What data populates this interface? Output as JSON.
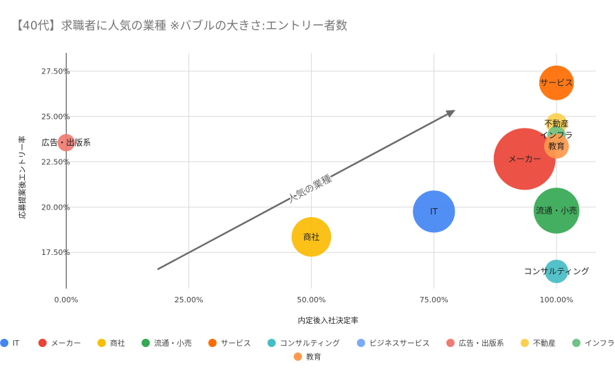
{
  "chart_data": {
    "type": "scatter",
    "title": "【40代】求職者に人気の業種 ※バブルの大きさ:エントリー者数",
    "xlabel": "内定後入社決定率",
    "ylabel": "応募提案後エントリー率",
    "xlim": [
      -0.02,
      1.08
    ],
    "ylim": [
      0.155,
      0.285
    ],
    "x_ticks": [
      "0.00%",
      "25.00%",
      "50.00%",
      "75.00%",
      "100.00%"
    ],
    "x_tick_values": [
      0,
      0.25,
      0.5,
      0.75,
      1.0
    ],
    "y_ticks": [
      "17.50%",
      "20.00%",
      "22.50%",
      "25.00%",
      "27.50%"
    ],
    "y_tick_values": [
      0.175,
      0.2,
      0.225,
      0.25,
      0.275
    ],
    "annotation": "人気の業種",
    "series": [
      {
        "name": "IT",
        "label": "IT",
        "x": 0.75,
        "y": 0.1975,
        "size": 34,
        "color": "#4285f4"
      },
      {
        "name": "メーカー",
        "label": "メーカー",
        "x": 0.935,
        "y": 0.2265,
        "size": 50,
        "color": "#ea4335"
      },
      {
        "name": "商社",
        "label": "商社",
        "x": 0.5,
        "y": 0.1835,
        "size": 32,
        "color": "#fbbc04"
      },
      {
        "name": "流通・小売",
        "label": "流通・小売",
        "x": 1.0,
        "y": 0.198,
        "size": 37,
        "color": "#34a853"
      },
      {
        "name": "サービス",
        "label": "サービス",
        "x": 1.0,
        "y": 0.2685,
        "size": 28,
        "color": "#ff6d01"
      },
      {
        "name": "コンサルティング",
        "label": "コンサルティング",
        "x": 1.0,
        "y": 0.1645,
        "size": 19,
        "color": "#46bdc6"
      },
      {
        "name": "ビジネスサービス",
        "label": "",
        "x": null,
        "y": null,
        "size": 0,
        "color": "#7baaf7"
      },
      {
        "name": "広告・出版系",
        "label": "広告・出版系",
        "x": 0.0,
        "y": 0.2355,
        "size": 14,
        "color": "#f07b72"
      },
      {
        "name": "不動産",
        "label": "不動産",
        "x": 1.0,
        "y": 0.246,
        "size": 17,
        "color": "#fcd04f"
      },
      {
        "name": "インフラ",
        "label": "インフラ",
        "x": 1.0,
        "y": 0.2395,
        "size": 15,
        "color": "#71c287"
      },
      {
        "name": "教育",
        "label": "教育",
        "x": 1.0,
        "y": 0.2335,
        "size": 20,
        "color": "#ff994d"
      }
    ]
  }
}
